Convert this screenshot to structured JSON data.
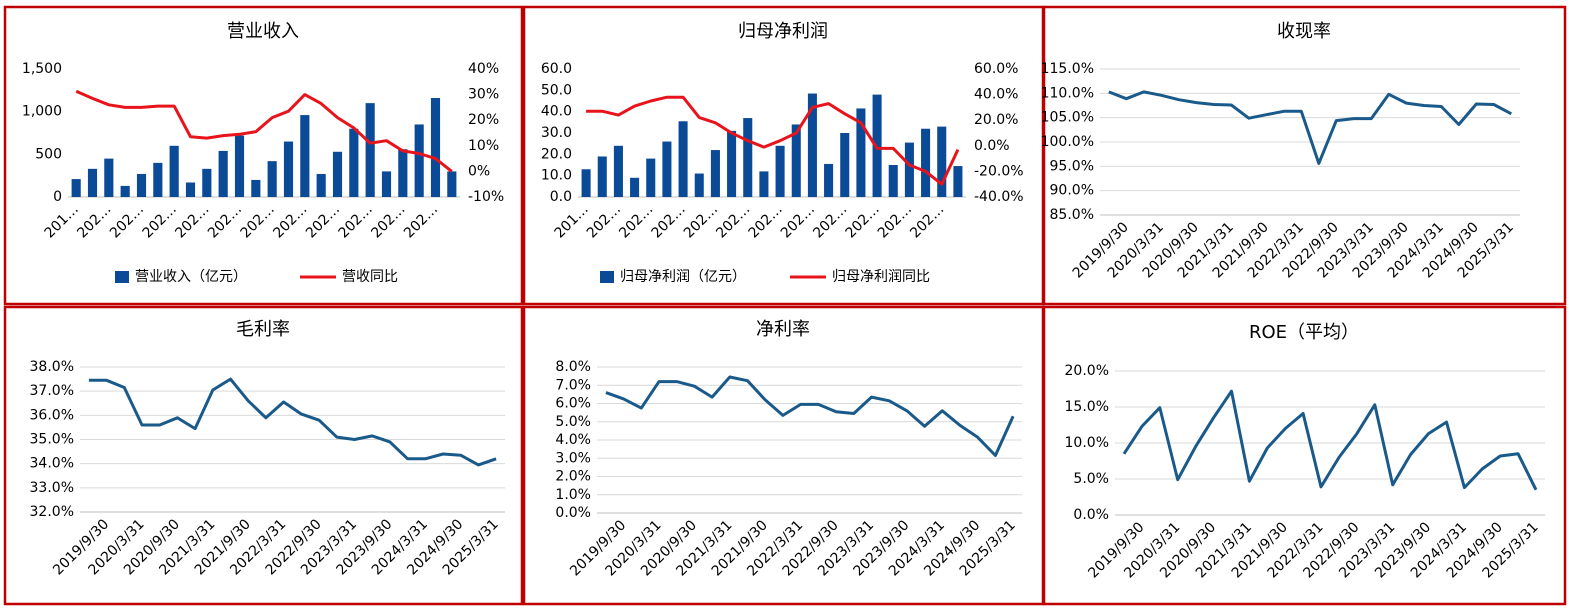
{
  "chart_data": [
    {
      "type": "combo",
      "title": "营业收入",
      "categories": [
        "201…",
        null,
        "202…",
        null,
        "202…",
        null,
        "202…",
        null,
        "202…",
        null,
        "202…",
        null,
        "202…",
        null,
        "202…",
        null,
        "202…",
        null,
        "202…",
        null,
        "202…",
        null,
        "202…",
        null
      ],
      "series": [
        {
          "name": "营业收入（亿元）",
          "type": "bar",
          "color": "#0b4a96",
          "values": [
            210,
            330,
            450,
            130,
            270,
            400,
            600,
            170,
            330,
            540,
            720,
            200,
            420,
            650,
            960,
            270,
            530,
            800,
            1100,
            300,
            560,
            850,
            1160,
            300
          ]
        },
        {
          "name": "营收同比",
          "type": "line",
          "axis": "y2",
          "color": "#e8141c",
          "values": [
            31.3,
            28.5,
            26,
            25,
            25,
            25.5,
            25.5,
            13.5,
            13,
            14,
            14.5,
            15.5,
            21,
            23.5,
            30,
            26.5,
            21,
            17,
            11,
            12,
            8,
            7,
            5,
            0
          ]
        }
      ],
      "ylim": [
        0,
        1500
      ],
      "yticks": [
        0,
        500,
        {
          "value": 1000,
          "label": "1,000"
        },
        {
          "value": 1500,
          "label": "1,500"
        }
      ],
      "y2lim": [
        -10,
        40
      ],
      "y2ticks": [
        {
          "value": -10,
          "label": "-10%"
        },
        {
          "value": 0,
          "label": "0%"
        },
        {
          "value": 10,
          "label": "10%"
        },
        {
          "value": 20,
          "label": "20%"
        },
        {
          "value": 30,
          "label": "30%"
        },
        {
          "value": 40,
          "label": "40%"
        }
      ],
      "grid": false
    },
    {
      "type": "combo",
      "title": "归母净利润",
      "categories": [
        "201…",
        null,
        "202…",
        null,
        "202…",
        null,
        "202…",
        null,
        "202…",
        null,
        "202…",
        null,
        "202…",
        null,
        "202…",
        null,
        "202…",
        null,
        "202…",
        null,
        "202…",
        null,
        "202…",
        null
      ],
      "series": [
        {
          "name": "归母净利润（亿元）",
          "type": "bar",
          "color": "#0b4a96",
          "values": [
            13,
            19,
            24,
            9,
            18,
            26,
            35.5,
            11,
            22,
            31,
            37,
            12,
            24,
            34,
            48.5,
            15.5,
            30,
            41.5,
            48,
            15,
            25.5,
            32,
            33,
            14.5
          ]
        },
        {
          "name": "归母净利润同比",
          "type": "line",
          "axis": "y2",
          "color": "#e8141c",
          "values": [
            27,
            27,
            24,
            31,
            35,
            38,
            38,
            22,
            18,
            10,
            4,
            -1,
            4,
            10,
            30,
            33,
            25,
            18,
            -2,
            -2,
            -15,
            -20,
            -30,
            -3
          ]
        }
      ],
      "ylim": [
        0,
        60
      ],
      "yticks": [
        {
          "value": 0,
          "label": "0.0"
        },
        {
          "value": 10,
          "label": "10.0"
        },
        {
          "value": 20,
          "label": "20.0"
        },
        {
          "value": 30,
          "label": "30.0"
        },
        {
          "value": 40,
          "label": "40.0"
        },
        {
          "value": 50,
          "label": "50.0"
        },
        {
          "value": 60,
          "label": "60.0"
        }
      ],
      "y2lim": [
        -40,
        60
      ],
      "y2ticks": [
        {
          "value": -40,
          "label": "-40.0%"
        },
        {
          "value": -20,
          "label": "-20.0%"
        },
        {
          "value": 0,
          "label": "0.0%"
        },
        {
          "value": 20,
          "label": "20.0%"
        },
        {
          "value": 40,
          "label": "40.0%"
        },
        {
          "value": 60,
          "label": "60.0%"
        }
      ],
      "grid": false
    },
    {
      "type": "line",
      "title": "收现率",
      "categories": [
        null,
        "2019/9/30",
        null,
        "2020/3/31",
        null,
        "2020/9/30",
        null,
        "2021/3/31",
        null,
        "2021/9/30",
        null,
        "2022/3/31",
        null,
        "2022/9/30",
        null,
        "2023/3/31",
        null,
        "2023/9/30",
        null,
        "2024/3/31",
        null,
        "2024/9/30",
        null,
        "2025/3/31"
      ],
      "color": "#1a5a8a",
      "values": [
        110.3,
        108.9,
        110.3,
        109.6,
        108.7,
        108.1,
        107.7,
        107.6,
        104.9,
        105.6,
        106.3,
        106.3,
        95.6,
        104.4,
        104.8,
        104.8,
        109.8,
        108.0,
        107.5,
        107.3,
        103.6,
        107.8,
        107.7,
        105.8
      ],
      "ylim": [
        85,
        115
      ],
      "yticks": [
        {
          "value": 85,
          "label": "85.0%"
        },
        {
          "value": 90,
          "label": "90.0%"
        },
        {
          "value": 95,
          "label": "95.0%"
        },
        {
          "value": 100,
          "label": "100.0%"
        },
        {
          "value": 105,
          "label": "105.0%"
        },
        {
          "value": 110,
          "label": "110.0%"
        },
        {
          "value": 115,
          "label": "115.0%"
        }
      ],
      "grid": true
    },
    {
      "type": "line",
      "title": "毛利率",
      "categories": [
        null,
        "2019/9/30",
        null,
        "2020/3/31",
        null,
        "2020/9/30",
        null,
        "2021/3/31",
        null,
        "2021/9/30",
        null,
        "2022/3/31",
        null,
        "2022/9/30",
        null,
        "2023/3/31",
        null,
        "2023/9/30",
        null,
        "2024/3/31",
        null,
        "2024/9/30",
        null,
        "2025/3/31"
      ],
      "color": "#1a5a8a",
      "values": [
        37.45,
        37.45,
        37.15,
        35.6,
        35.6,
        35.9,
        35.45,
        37.05,
        37.5,
        36.6,
        35.9,
        36.55,
        36.05,
        35.8,
        35.1,
        35.0,
        35.15,
        34.9,
        34.2,
        34.2,
        34.4,
        34.35,
        33.95,
        34.2
      ],
      "ylim": [
        32,
        38
      ],
      "yticks": [
        {
          "value": 32,
          "label": "32.0%"
        },
        {
          "value": 33,
          "label": "33.0%"
        },
        {
          "value": 34,
          "label": "34.0%"
        },
        {
          "value": 35,
          "label": "35.0%"
        },
        {
          "value": 36,
          "label": "36.0%"
        },
        {
          "value": 37,
          "label": "37.0%"
        },
        {
          "value": 38,
          "label": "38.0%"
        }
      ],
      "grid": true
    },
    {
      "type": "line",
      "title": "净利率",
      "categories": [
        null,
        "2019/9/30",
        null,
        "2020/3/31",
        null,
        "2020/9/30",
        null,
        "2021/3/31",
        null,
        "2021/9/30",
        null,
        "2022/3/31",
        null,
        "2022/9/30",
        null,
        "2023/3/31",
        null,
        "2023/9/30",
        null,
        "2024/3/31",
        null,
        "2024/9/30",
        null,
        "2025/3/31"
      ],
      "color": "#1a5a8a",
      "values": [
        6.6,
        6.25,
        5.75,
        7.2,
        7.2,
        6.95,
        6.35,
        7.45,
        7.25,
        6.2,
        5.35,
        5.95,
        5.95,
        5.55,
        5.45,
        6.35,
        6.15,
        5.6,
        4.75,
        5.6,
        4.8,
        4.15,
        3.15,
        5.3
      ],
      "ylim": [
        0,
        8
      ],
      "yticks": [
        {
          "value": 0,
          "label": "0.0%"
        },
        {
          "value": 1,
          "label": "1.0%"
        },
        {
          "value": 2,
          "label": "2.0%"
        },
        {
          "value": 3,
          "label": "3.0%"
        },
        {
          "value": 4,
          "label": "4.0%"
        },
        {
          "value": 5,
          "label": "5.0%"
        },
        {
          "value": 6,
          "label": "6.0%"
        },
        {
          "value": 7,
          "label": "7.0%"
        },
        {
          "value": 8,
          "label": "8.0%"
        }
      ],
      "grid": true
    },
    {
      "type": "line",
      "title": "ROE（平均）",
      "categories": [
        null,
        "2019/9/30",
        null,
        "2020/3/31",
        null,
        "2020/9/30",
        null,
        "2021/3/31",
        null,
        "2021/9/30",
        null,
        "2022/3/31",
        null,
        "2022/9/30",
        null,
        "2023/3/31",
        null,
        "2023/9/30",
        null,
        "2024/3/31",
        null,
        "2024/9/30",
        null,
        "2025/3/31"
      ],
      "color": "#1a5a8a",
      "values": [
        8.5,
        12.3,
        14.9,
        4.9,
        9.5,
        13.5,
        17.2,
        4.7,
        9.3,
        12.0,
        14.1,
        3.9,
        8.0,
        11.3,
        15.3,
        4.2,
        8.4,
        11.3,
        12.9,
        3.8,
        6.4,
        8.2,
        8.5,
        3.5
      ],
      "ylim": [
        0,
        20
      ],
      "yticks": [
        {
          "value": 0,
          "label": "0.0%"
        },
        {
          "value": 5,
          "label": "5.0%"
        },
        {
          "value": 10,
          "label": "10.0%"
        },
        {
          "value": 15,
          "label": "15.0%"
        },
        {
          "value": 20,
          "label": "20.0%"
        }
      ],
      "grid": true
    }
  ]
}
